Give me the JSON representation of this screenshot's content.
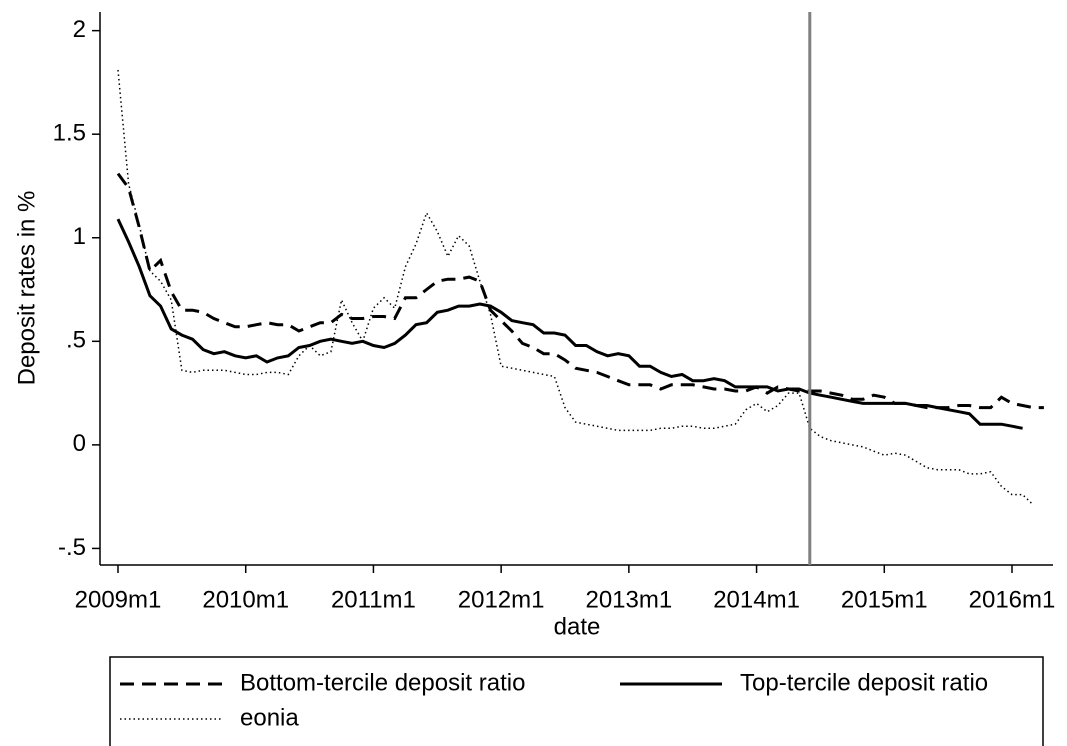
{
  "chart_data": {
    "type": "line",
    "y_label": "Deposit rates in %",
    "x_label": "date",
    "x": [
      "2009m1",
      "2009m2",
      "2009m3",
      "2009m4",
      "2009m5",
      "2009m6",
      "2009m7",
      "2009m8",
      "2009m9",
      "2009m10",
      "2009m11",
      "2009m12",
      "2010m1",
      "2010m2",
      "2010m3",
      "2010m4",
      "2010m5",
      "2010m6",
      "2010m7",
      "2010m8",
      "2010m9",
      "2010m10",
      "2010m11",
      "2010m12",
      "2011m1",
      "2011m2",
      "2011m3",
      "2011m4",
      "2011m5",
      "2011m6",
      "2011m7",
      "2011m8",
      "2011m9",
      "2011m10",
      "2011m11",
      "2011m12",
      "2012m1",
      "2012m2",
      "2012m3",
      "2012m4",
      "2012m5",
      "2012m6",
      "2012m7",
      "2012m8",
      "2012m9",
      "2012m10",
      "2012m11",
      "2012m12",
      "2013m1",
      "2013m2",
      "2013m3",
      "2013m4",
      "2013m5",
      "2013m6",
      "2013m7",
      "2013m8",
      "2013m9",
      "2013m10",
      "2013m11",
      "2013m12",
      "2014m1",
      "2014m2",
      "2014m3",
      "2014m4",
      "2014m5",
      "2014m6",
      "2014m7",
      "2014m8",
      "2014m9",
      "2014m10",
      "2014m11",
      "2014m12",
      "2015m1",
      "2015m2",
      "2015m3",
      "2015m4",
      "2015m5",
      "2015m6",
      "2015m7",
      "2015m8",
      "2015m9",
      "2015m10",
      "2015m11",
      "2015m12",
      "2016m1",
      "2016m2",
      "2016m3",
      "2016m4"
    ],
    "series": [
      {
        "name": "Bottom-tercile deposit ratio",
        "color": "#000000",
        "style": "dashed",
        "values": [
          1.31,
          1.24,
          1.05,
          0.84,
          0.89,
          0.74,
          0.65,
          0.65,
          0.64,
          0.61,
          0.59,
          0.57,
          0.57,
          0.58,
          0.59,
          0.58,
          0.58,
          0.55,
          0.57,
          0.59,
          0.59,
          0.63,
          0.61,
          0.61,
          0.62,
          0.62,
          0.61,
          0.71,
          0.71,
          0.75,
          0.79,
          0.8,
          0.8,
          0.81,
          0.79,
          0.65,
          0.6,
          0.55,
          0.49,
          0.47,
          0.44,
          0.44,
          0.41,
          0.37,
          0.36,
          0.35,
          0.33,
          0.31,
          0.29,
          0.29,
          0.29,
          0.27,
          0.29,
          0.29,
          0.29,
          0.28,
          0.27,
          0.27,
          0.26,
          0.26,
          0.28,
          0.25,
          0.28,
          0.27,
          0.26,
          0.26,
          0.26,
          0.25,
          0.24,
          0.22,
          0.22,
          0.24,
          0.23,
          0.2,
          0.2,
          0.19,
          0.18,
          0.18,
          0.18,
          0.19,
          0.19,
          0.18,
          0.18,
          0.23,
          0.2,
          0.19,
          0.18,
          0.18
        ]
      },
      {
        "name": "Top-tercile deposit ratio",
        "color": "#000000",
        "style": "solid",
        "values": [
          1.09,
          0.98,
          0.86,
          0.72,
          0.67,
          0.56,
          0.53,
          0.51,
          0.46,
          0.44,
          0.45,
          0.43,
          0.42,
          0.43,
          0.4,
          0.42,
          0.43,
          0.47,
          0.48,
          0.5,
          0.51,
          0.5,
          0.49,
          0.5,
          0.48,
          0.47,
          0.49,
          0.53,
          0.58,
          0.59,
          0.64,
          0.65,
          0.67,
          0.67,
          0.68,
          0.67,
          0.64,
          0.6,
          0.59,
          0.58,
          0.54,
          0.54,
          0.53,
          0.48,
          0.48,
          0.45,
          0.43,
          0.44,
          0.43,
          0.38,
          0.38,
          0.35,
          0.33,
          0.34,
          0.31,
          0.31,
          0.32,
          0.31,
          0.28,
          0.28,
          0.28,
          0.28,
          0.26,
          0.27,
          0.27,
          0.25,
          0.24,
          0.23,
          0.22,
          0.21,
          0.2,
          0.2,
          0.2,
          0.2,
          0.2,
          0.19,
          0.19,
          0.18,
          0.17,
          0.16,
          0.15,
          0.1,
          0.1,
          0.1,
          0.09,
          0.08,
          null,
          null
        ]
      },
      {
        "name": "eonia",
        "color": "#000000",
        "style": "dotted",
        "values": [
          1.81,
          1.26,
          1.06,
          0.84,
          0.79,
          0.7,
          0.36,
          0.35,
          0.36,
          0.36,
          0.36,
          0.35,
          0.34,
          0.34,
          0.35,
          0.35,
          0.34,
          0.43,
          0.48,
          0.43,
          0.45,
          0.7,
          0.59,
          0.5,
          0.66,
          0.71,
          0.66,
          0.86,
          0.97,
          1.12,
          1.03,
          0.91,
          1.01,
          0.96,
          0.79,
          0.63,
          0.38,
          0.37,
          0.36,
          0.35,
          0.34,
          0.33,
          0.18,
          0.11,
          0.1,
          0.09,
          0.08,
          0.07,
          0.07,
          0.07,
          0.07,
          0.08,
          0.08,
          0.09,
          0.09,
          0.08,
          0.08,
          0.09,
          0.1,
          0.17,
          0.2,
          0.16,
          0.19,
          0.25,
          0.25,
          0.08,
          0.04,
          0.02,
          0.01,
          0.0,
          -0.01,
          -0.03,
          -0.05,
          -0.04,
          -0.05,
          -0.08,
          -0.11,
          -0.12,
          -0.12,
          -0.12,
          -0.14,
          -0.14,
          -0.13,
          -0.2,
          -0.24,
          -0.24,
          -0.29,
          null
        ]
      }
    ],
    "ylim": [
      -0.58,
      2.09
    ],
    "yticks": [
      {
        "value": -0.5,
        "label": "-.5"
      },
      0,
      {
        "value": 0.5,
        "label": ".5"
      },
      1,
      1.5,
      2
    ],
    "xticks": [
      "2009m1",
      "2010m1",
      "2011m1",
      "2012m1",
      "2013m1",
      "2014m1",
      "2015m1",
      "2016m1"
    ],
    "xline": "2014m6",
    "xline_color": "#808080",
    "grid": false
  }
}
